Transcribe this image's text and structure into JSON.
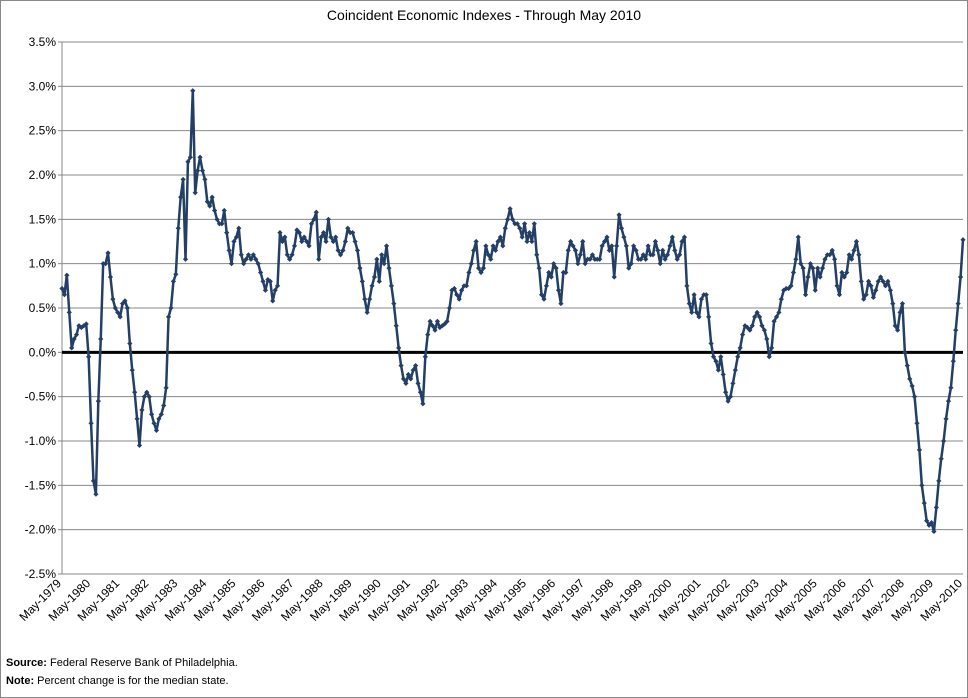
{
  "chart_data": {
    "type": "line",
    "title": "Coincident Economic Indexes - Through May 2010",
    "source_label": "Source:",
    "source": "Federal Reserve Bank of Philadelphia.",
    "note_label": "Note:",
    "note": "Percent change is for the median state.",
    "color": "#243f66",
    "grid": true,
    "zero_line": true,
    "ylim": [
      -2.5,
      3.5
    ],
    "yticks": [
      {
        "value": -2.5,
        "label": "-2.5%"
      },
      {
        "value": -2.0,
        "label": "-2.0%"
      },
      {
        "value": -1.5,
        "label": "-1.5%"
      },
      {
        "value": -1.0,
        "label": "-1.0%"
      },
      {
        "value": -0.5,
        "label": "-0.5%"
      },
      {
        "value": 0,
        "label": "0.0%"
      },
      {
        "value": 0.5,
        "label": "0.5%"
      },
      {
        "value": 1.0,
        "label": "1.0%"
      },
      {
        "value": 1.5,
        "label": "1.5%"
      },
      {
        "value": 2.0,
        "label": "2.0%"
      },
      {
        "value": 2.5,
        "label": "2.5%"
      },
      {
        "value": 3.0,
        "label": "3.0%"
      },
      {
        "value": 3.5,
        "label": "3.5%"
      }
    ],
    "categories": [
      "May-1979",
      null,
      null,
      null,
      null,
      null,
      null,
      null,
      null,
      null,
      null,
      null,
      "May-1980",
      null,
      null,
      null,
      null,
      null,
      null,
      null,
      null,
      null,
      null,
      null,
      "May-1981",
      null,
      null,
      null,
      null,
      null,
      null,
      null,
      null,
      null,
      null,
      null,
      "May-1982",
      null,
      null,
      null,
      null,
      null,
      null,
      null,
      null,
      null,
      null,
      null,
      "May-1983",
      null,
      null,
      null,
      null,
      null,
      null,
      null,
      null,
      null,
      null,
      null,
      "May-1984",
      null,
      null,
      null,
      null,
      null,
      null,
      null,
      null,
      null,
      null,
      null,
      "May-1985",
      null,
      null,
      null,
      null,
      null,
      null,
      null,
      null,
      null,
      null,
      null,
      "May-1986",
      null,
      null,
      null,
      null,
      null,
      null,
      null,
      null,
      null,
      null,
      null,
      "May-1987",
      null,
      null,
      null,
      null,
      null,
      null,
      null,
      null,
      null,
      null,
      null,
      "May-1988",
      null,
      null,
      null,
      null,
      null,
      null,
      null,
      null,
      null,
      null,
      null,
      "May-1989",
      null,
      null,
      null,
      null,
      null,
      null,
      null,
      null,
      null,
      null,
      null,
      "May-1990",
      null,
      null,
      null,
      null,
      null,
      null,
      null,
      null,
      null,
      null,
      null,
      "May-1991",
      null,
      null,
      null,
      null,
      null,
      null,
      null,
      null,
      null,
      null,
      null,
      "May-1992",
      null,
      null,
      null,
      null,
      null,
      null,
      null,
      null,
      null,
      null,
      null,
      "May-1993",
      null,
      null,
      null,
      null,
      null,
      null,
      null,
      null,
      null,
      null,
      null,
      "May-1994",
      null,
      null,
      null,
      null,
      null,
      null,
      null,
      null,
      null,
      null,
      null,
      "May-1995",
      null,
      null,
      null,
      null,
      null,
      null,
      null,
      null,
      null,
      null,
      null,
      "May-1996",
      null,
      null,
      null,
      null,
      null,
      null,
      null,
      null,
      null,
      null,
      null,
      "May-1997",
      null,
      null,
      null,
      null,
      null,
      null,
      null,
      null,
      null,
      null,
      null,
      "May-1998",
      null,
      null,
      null,
      null,
      null,
      null,
      null,
      null,
      null,
      null,
      null,
      "May-1999",
      null,
      null,
      null,
      null,
      null,
      null,
      null,
      null,
      null,
      null,
      null,
      "May-2000",
      null,
      null,
      null,
      null,
      null,
      null,
      null,
      null,
      null,
      null,
      null,
      "May-2001",
      null,
      null,
      null,
      null,
      null,
      null,
      null,
      null,
      null,
      null,
      null,
      "May-2002",
      null,
      null,
      null,
      null,
      null,
      null,
      null,
      null,
      null,
      null,
      null,
      "May-2003",
      null,
      null,
      null,
      null,
      null,
      null,
      null,
      null,
      null,
      null,
      null,
      "May-2004",
      null,
      null,
      null,
      null,
      null,
      null,
      null,
      null,
      null,
      null,
      null,
      "May-2005",
      null,
      null,
      null,
      null,
      null,
      null,
      null,
      null,
      null,
      null,
      null,
      "May-2006",
      null,
      null,
      null,
      null,
      null,
      null,
      null,
      null,
      null,
      null,
      null,
      "May-2007",
      null,
      null,
      null,
      null,
      null,
      null,
      null,
      null,
      null,
      null,
      null,
      "May-2008",
      null,
      null,
      null,
      null,
      null,
      null,
      null,
      null,
      null,
      null,
      null,
      "May-2009",
      null,
      null,
      null,
      null,
      null,
      null,
      null,
      null,
      null,
      null,
      null,
      "May-2010"
    ],
    "values": [
      0.72,
      0.65,
      0.87,
      0.45,
      0.05,
      0.15,
      0.2,
      0.3,
      0.28,
      0.3,
      0.32,
      -0.05,
      -0.8,
      -1.45,
      -1.6,
      -0.55,
      0.15,
      1.0,
      1.0,
      1.12,
      0.85,
      0.6,
      0.5,
      0.45,
      0.4,
      0.55,
      0.58,
      0.5,
      0.1,
      -0.2,
      -0.45,
      -0.75,
      -1.05,
      -0.65,
      -0.5,
      -0.45,
      -0.5,
      -0.7,
      -0.8,
      -0.88,
      -0.75,
      -0.7,
      -0.6,
      -0.4,
      0.4,
      0.5,
      0.8,
      0.88,
      1.4,
      1.75,
      1.95,
      1.05,
      2.15,
      2.2,
      2.95,
      1.8,
      2.05,
      2.2,
      2.05,
      1.95,
      1.7,
      1.65,
      1.75,
      1.6,
      1.5,
      1.45,
      1.45,
      1.6,
      1.35,
      1.15,
      1.0,
      1.25,
      1.3,
      1.4,
      1.1,
      1.0,
      1.05,
      1.1,
      1.05,
      1.1,
      1.05,
      1.0,
      0.9,
      0.8,
      0.7,
      0.82,
      0.8,
      0.58,
      0.7,
      0.75,
      1.35,
      1.25,
      1.3,
      1.1,
      1.05,
      1.1,
      1.2,
      1.38,
      1.35,
      1.25,
      1.3,
      1.25,
      1.2,
      1.45,
      1.5,
      1.58,
      1.05,
      1.3,
      1.35,
      1.25,
      1.5,
      1.3,
      1.25,
      1.3,
      1.15,
      1.1,
      1.15,
      1.25,
      1.4,
      1.35,
      1.35,
      1.25,
      1.15,
      0.95,
      0.8,
      0.6,
      0.45,
      0.6,
      0.75,
      0.85,
      1.05,
      0.8,
      1.1,
      1.0,
      1.2,
      0.95,
      0.75,
      0.55,
      0.3,
      0.05,
      -0.15,
      -0.3,
      -0.35,
      -0.25,
      -0.3,
      -0.2,
      -0.15,
      -0.35,
      -0.45,
      -0.58,
      -0.05,
      0.2,
      0.35,
      0.3,
      0.25,
      0.35,
      0.28,
      0.3,
      0.32,
      0.35,
      0.5,
      0.7,
      0.72,
      0.65,
      0.6,
      0.7,
      0.75,
      0.75,
      0.9,
      1.0,
      1.15,
      1.25,
      0.95,
      0.9,
      0.95,
      1.2,
      1.1,
      1.05,
      1.2,
      1.15,
      1.25,
      1.3,
      1.2,
      1.4,
      1.5,
      1.62,
      1.5,
      1.45,
      1.45,
      1.4,
      1.3,
      1.45,
      1.25,
      1.35,
      1.25,
      1.45,
      1.1,
      0.95,
      0.65,
      0.6,
      0.75,
      0.9,
      0.85,
      1.0,
      0.95,
      0.7,
      0.55,
      0.9,
      0.9,
      1.15,
      1.25,
      1.2,
      1.15,
      1.0,
      1.1,
      1.25,
      1.0,
      1.05,
      1.05,
      1.1,
      1.05,
      1.05,
      1.05,
      1.2,
      1.25,
      1.3,
      1.15,
      1.2,
      0.85,
      1.2,
      1.55,
      1.4,
      1.3,
      1.2,
      0.95,
      1.0,
      1.2,
      1.15,
      1.05,
      1.05,
      1.1,
      1.05,
      1.2,
      1.1,
      1.1,
      1.25,
      1.15,
      1.0,
      1.15,
      1.05,
      1.1,
      1.2,
      1.3,
      1.15,
      1.05,
      1.1,
      1.25,
      1.3,
      0.75,
      0.55,
      0.45,
      0.65,
      0.45,
      0.4,
      0.6,
      0.65,
      0.65,
      0.4,
      0.1,
      -0.05,
      -0.1,
      -0.2,
      -0.05,
      -0.25,
      -0.45,
      -0.55,
      -0.5,
      -0.35,
      -0.2,
      -0.05,
      0.05,
      0.2,
      0.3,
      0.28,
      0.25,
      0.3,
      0.4,
      0.45,
      0.4,
      0.3,
      0.25,
      0.15,
      -0.05,
      0.05,
      0.35,
      0.4,
      0.45,
      0.6,
      0.7,
      0.72,
      0.72,
      0.75,
      0.9,
      1.05,
      1.3,
      1.0,
      0.95,
      0.65,
      0.85,
      1.0,
      0.95,
      0.7,
      0.95,
      0.85,
      0.95,
      1.05,
      1.1,
      1.1,
      1.15,
      1.05,
      0.75,
      0.65,
      0.9,
      0.85,
      0.9,
      1.1,
      1.05,
      1.15,
      1.25,
      1.1,
      0.8,
      0.6,
      0.65,
      0.8,
      0.75,
      0.62,
      0.7,
      0.8,
      0.85,
      0.8,
      0.75,
      0.8,
      0.7,
      0.55,
      0.3,
      0.25,
      0.45,
      0.55,
      0.0,
      -0.15,
      -0.3,
      -0.38,
      -0.5,
      -0.8,
      -1.1,
      -1.5,
      -1.7,
      -1.9,
      -1.95,
      -1.92,
      -2.02,
      -1.75,
      -1.45,
      -1.2,
      -1.0,
      -0.75,
      -0.55,
      -0.4,
      -0.1,
      0.25,
      0.55,
      0.85,
      1.27
    ]
  }
}
